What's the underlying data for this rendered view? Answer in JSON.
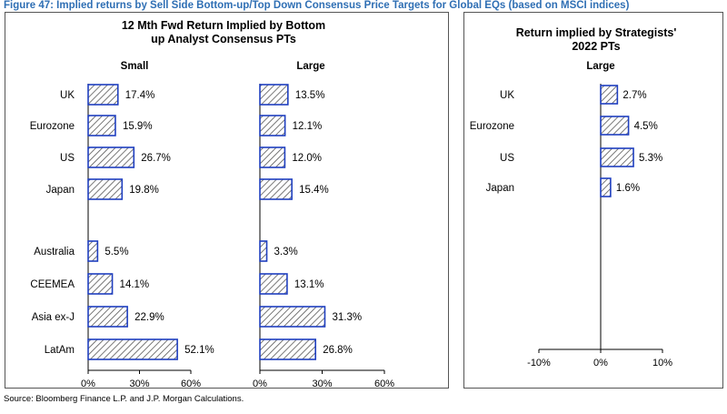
{
  "figure_title": "Figure 47: Implied returns by Sell Side Bottom-up/Top Down Consensus Price Targets for Global EQs (based on MSCI indices)",
  "source": "Source: Bloomberg Finance L.P. and J.P. Morgan Calculations.",
  "colors": {
    "title": "#2f6fb4",
    "bar_border": "#1f3fbf",
    "hatch": "#555555",
    "axis": "#000000"
  },
  "chart_data": [
    {
      "type": "bar",
      "orientation": "horizontal",
      "title": "12 Mth Fwd Return Implied by Bottom up Analyst Consensus PTs",
      "title_lines": [
        "12 Mth Fwd Return Implied by Bottom",
        "up Analyst Consensus PTs"
      ],
      "categories": [
        "UK",
        "Eurozone",
        "US",
        "Japan",
        "",
        "Australia",
        "CEEMEA",
        "Asia ex-J",
        "LatAm"
      ],
      "series": [
        {
          "name": "Small",
          "values": [
            17.4,
            15.9,
            26.7,
            19.8,
            null,
            5.5,
            14.1,
            22.9,
            52.1
          ],
          "labels": [
            "17.4%",
            "15.9%",
            "26.7%",
            "19.8%",
            "",
            "5.5%",
            "14.1%",
            "22.9%",
            "52.1%"
          ],
          "xlim": [
            0,
            60
          ],
          "ticks": [
            "0%",
            "30%",
            "60%"
          ]
        },
        {
          "name": "Large",
          "values": [
            13.5,
            12.1,
            12.0,
            15.4,
            null,
            3.3,
            13.1,
            31.3,
            26.8
          ],
          "labels": [
            "13.5%",
            "12.1%",
            "12.0%",
            "15.4%",
            "",
            "3.3%",
            "13.1%",
            "31.3%",
            "26.8%"
          ],
          "xlim": [
            0,
            60
          ],
          "ticks": [
            "0%",
            "30%",
            "60%"
          ]
        }
      ]
    },
    {
      "type": "bar",
      "orientation": "horizontal",
      "title": "Return implied by Strategists' 2022 PTs",
      "title_lines": [
        "Return implied  by Strategists'",
        "2022 PTs"
      ],
      "categories": [
        "UK",
        "Eurozone",
        "US",
        "Japan"
      ],
      "series": [
        {
          "name": "Large",
          "values": [
            2.7,
            4.5,
            5.3,
            1.6
          ],
          "labels": [
            "2.7%",
            "4.5%",
            "5.3%",
            "1.6%"
          ],
          "xlim": [
            -10,
            10
          ],
          "ticks": [
            "-10%",
            "0%",
            "10%"
          ]
        }
      ]
    }
  ]
}
